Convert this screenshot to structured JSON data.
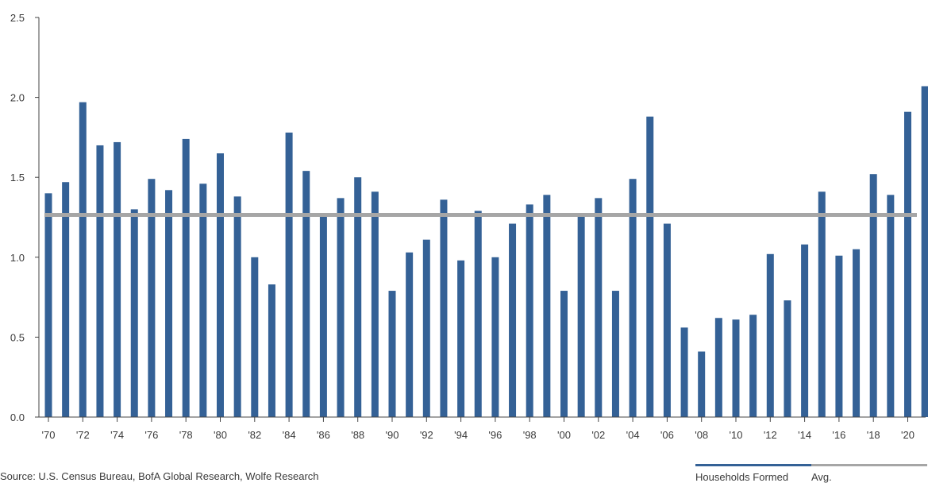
{
  "chart_data": {
    "type": "bar",
    "categories": [
      "'70",
      "'71",
      "'72",
      "'73",
      "'74",
      "'75",
      "'76",
      "'77",
      "'78",
      "'79",
      "'80",
      "'81",
      "'82",
      "'83",
      "'84",
      "'85",
      "'86",
      "'87",
      "'88",
      "'89",
      "'90",
      "'91",
      "'92",
      "'93",
      "'94",
      "'95",
      "'96",
      "'97",
      "'98",
      "'99",
      "'00",
      "'01",
      "'02",
      "'03",
      "'04",
      "'05",
      "'06",
      "'07",
      "'08",
      "'09",
      "'10",
      "'11",
      "'12",
      "'13",
      "'14",
      "'15",
      "'16",
      "'17",
      "'18",
      "'19",
      "'20",
      "'21"
    ],
    "x_tick_labels": [
      "'70",
      "'72",
      "'74",
      "'76",
      "'78",
      "'80",
      "'82",
      "'84",
      "'86",
      "'88",
      "'90",
      "'92",
      "'94",
      "'96",
      "'98",
      "'00",
      "'02",
      "'04",
      "'06",
      "'08",
      "'10",
      "'12",
      "'14",
      "'16",
      "'18",
      "'20"
    ],
    "series": [
      {
        "name": "Households Formed",
        "values": [
          1.4,
          1.47,
          1.97,
          1.7,
          1.72,
          1.3,
          1.49,
          1.42,
          1.74,
          1.46,
          1.65,
          1.38,
          1.0,
          0.83,
          1.78,
          1.54,
          1.26,
          1.37,
          1.5,
          1.41,
          0.79,
          1.03,
          1.11,
          1.36,
          0.98,
          1.29,
          1.0,
          1.21,
          1.33,
          1.39,
          0.79,
          1.26,
          1.37,
          0.79,
          1.49,
          1.88,
          1.21,
          0.56,
          0.41,
          0.62,
          0.61,
          0.64,
          1.02,
          0.73,
          1.08,
          1.41,
          1.01,
          1.05,
          1.52,
          1.39,
          1.91,
          2.07
        ],
        "color": "#346196"
      },
      {
        "name": "Avg.",
        "value": 1.265,
        "color": "#a6a6a6"
      }
    ],
    "y_ticks": [
      "0.0",
      "0.5",
      "1.0",
      "1.5",
      "2.0",
      "2.5"
    ],
    "ylim": [
      0,
      2.5
    ],
    "title": "",
    "xlabel": "",
    "ylabel": "",
    "legend_position": "bottom-right",
    "grid": false
  },
  "footer": {
    "source": "Source: U.S. Census Bureau, BofA Global Research, Wolfe Research"
  }
}
